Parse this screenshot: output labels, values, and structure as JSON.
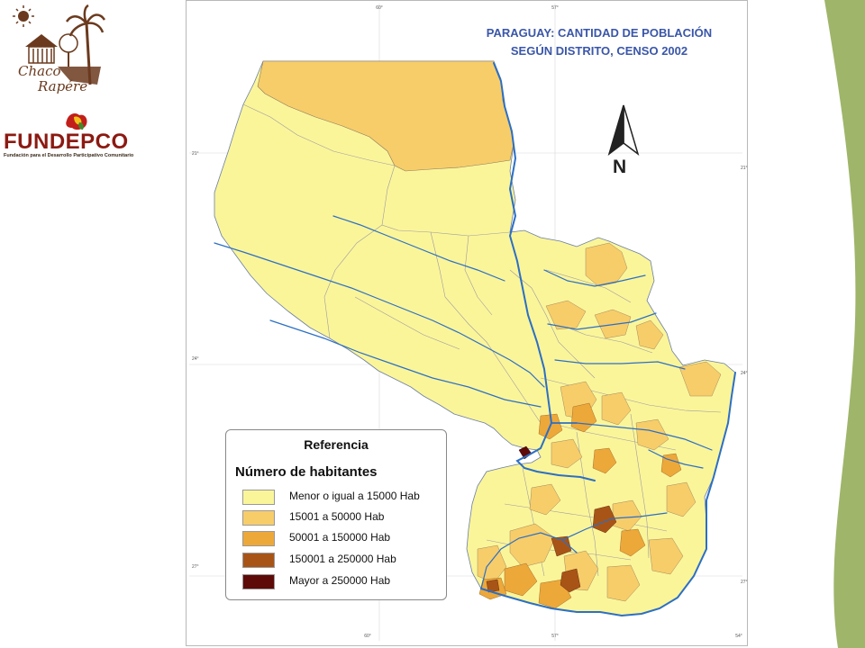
{
  "logos": {
    "chaco_line1": "Chaco",
    "chaco_line2": "Rapére",
    "fundepco_name": "FUNDEPCO",
    "fundepco_tagline": "Fundación para el Desarrollo Participativo Comunitario"
  },
  "map": {
    "title_line1": "PARAGUAY: CANTIDAD DE POBLACIÓN",
    "title_line2": "SEGÚN DISTRITO, CENSO 2002",
    "north_label": "N",
    "grid_labels": {
      "top_60": "60°",
      "top_57": "57°",
      "bottom_60": "60°",
      "bottom_57": "57°",
      "bottom_54": "54°",
      "left_21": "21°",
      "left_24": "24°",
      "left_27": "27°",
      "right_21": "21°",
      "right_24": "24°",
      "right_27": "27°"
    }
  },
  "legend": {
    "title": "Referencia",
    "subtitle": "Número de habitantes",
    "items": [
      {
        "label": "Menor o igual a 15000 Hab",
        "color": "#fbf59a"
      },
      {
        "label": "15001 a 50000 Hab",
        "color": "#f7cd6a"
      },
      {
        "label": "50001 a 150000 Hab",
        "color": "#eda83a"
      },
      {
        "label": "150001 a 250000 Hab",
        "color": "#a85417"
      },
      {
        "label": "Mayor a 250000 Hab",
        "color": "#5e0a08"
      }
    ]
  },
  "colors": {
    "river": "#2c6fc4",
    "side_band": "#9fb56a",
    "title": "#3a56a8",
    "fundepco": "#8b1a12"
  }
}
